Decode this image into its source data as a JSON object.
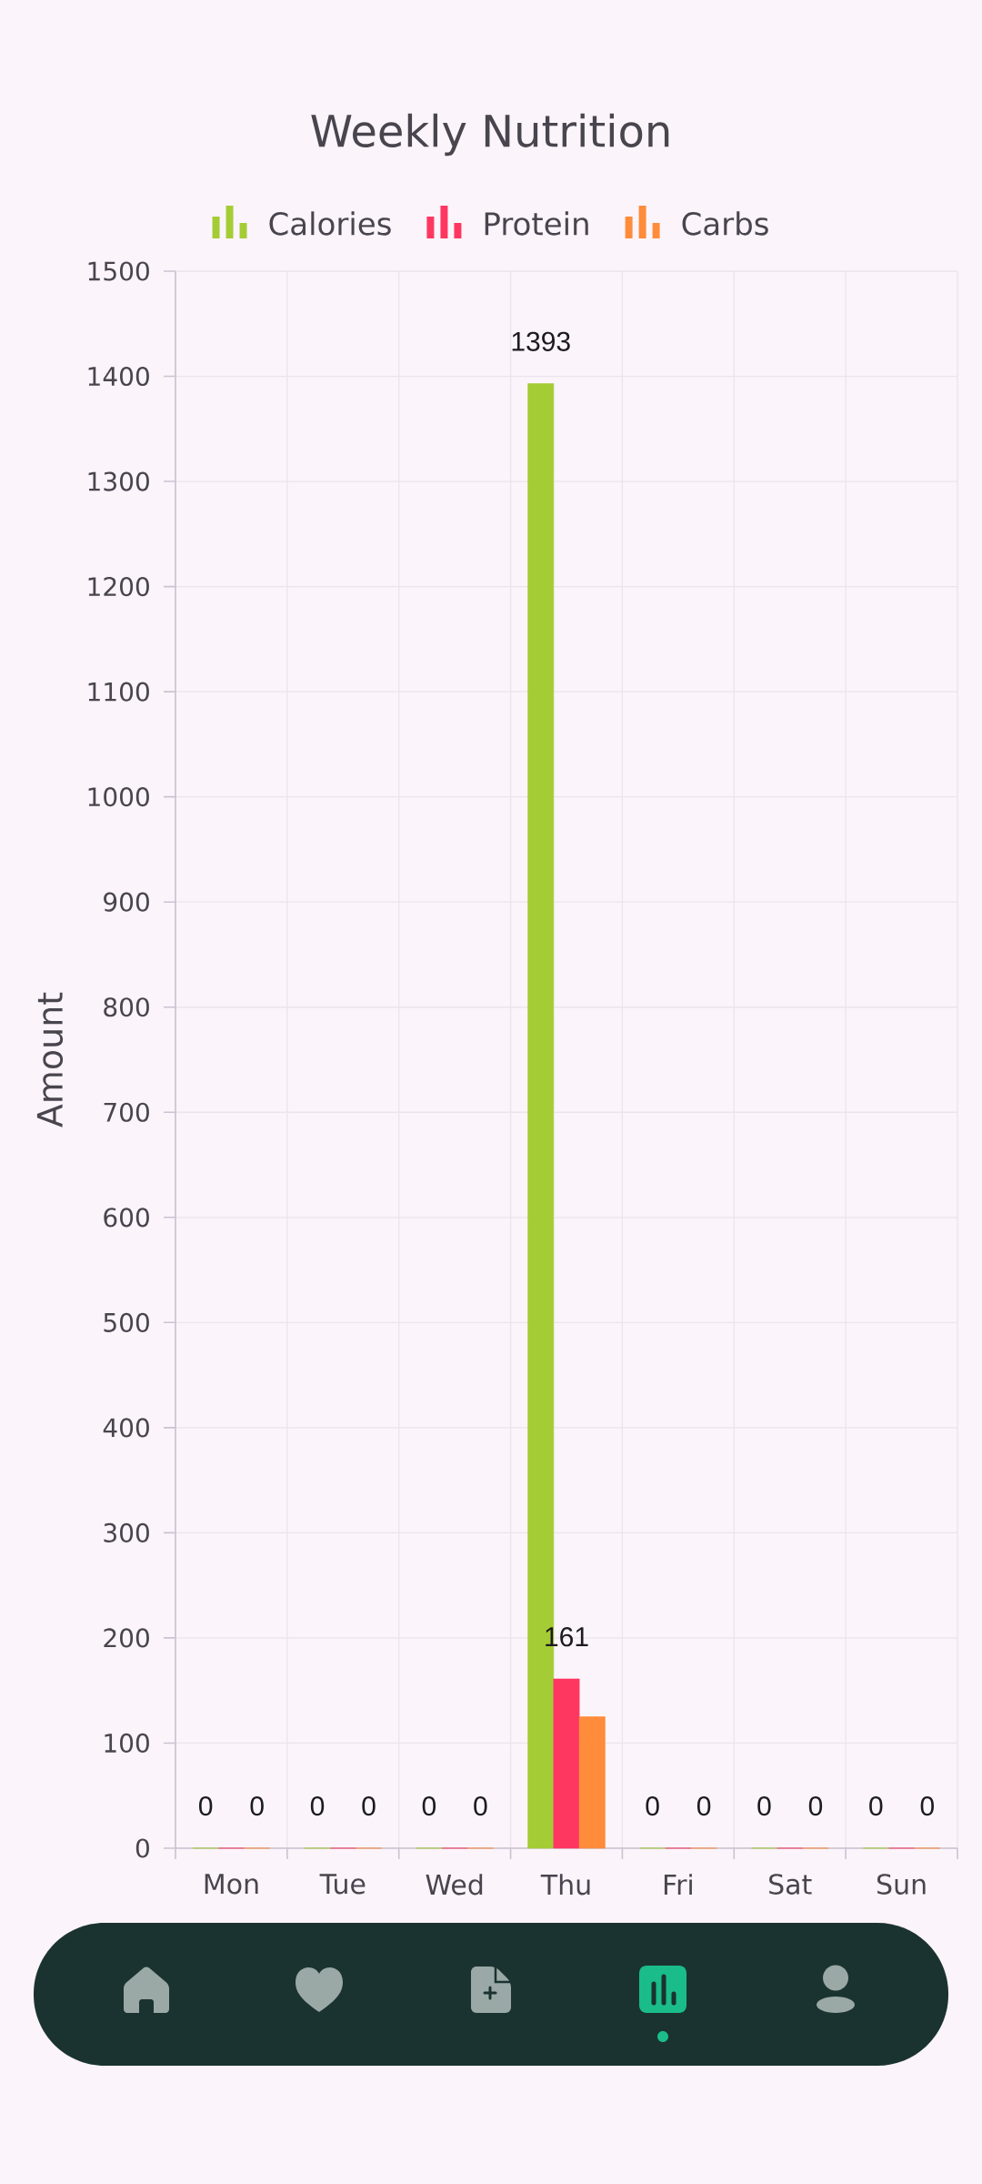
{
  "chart_data": {
    "type": "bar",
    "title": "Weekly Nutrition",
    "ylabel": "Amount",
    "categories": [
      "Mon",
      "Tue",
      "Wed",
      "Thu",
      "Fri",
      "Sat",
      "Sun"
    ],
    "series": [
      {
        "name": "Calories",
        "color": "#a4cd35",
        "values": [
          0,
          0,
          0,
          1393,
          0,
          0,
          0
        ],
        "value_labels": [
          "0",
          "0",
          "0",
          "1393",
          "0",
          "0",
          "0"
        ]
      },
      {
        "name": "Protein",
        "color": "#fe3761",
        "values": [
          0,
          0,
          0,
          161,
          0,
          0,
          0
        ],
        "value_labels": [
          null,
          null,
          null,
          "161",
          null,
          null,
          null
        ]
      },
      {
        "name": "Carbs",
        "color": "#fe8c3b",
        "values": [
          0,
          0,
          0,
          125,
          0,
          0,
          0
        ],
        "value_labels": [
          "0",
          "0",
          "0",
          null,
          "0",
          "0",
          "0"
        ]
      }
    ],
    "ylim": [
      0,
      1500
    ],
    "yticks": [
      0,
      100,
      200,
      300,
      400,
      500,
      600,
      700,
      800,
      900,
      1000,
      1100,
      1200,
      1300,
      1400,
      1500
    ],
    "grid": true,
    "legend": "top"
  }
}
